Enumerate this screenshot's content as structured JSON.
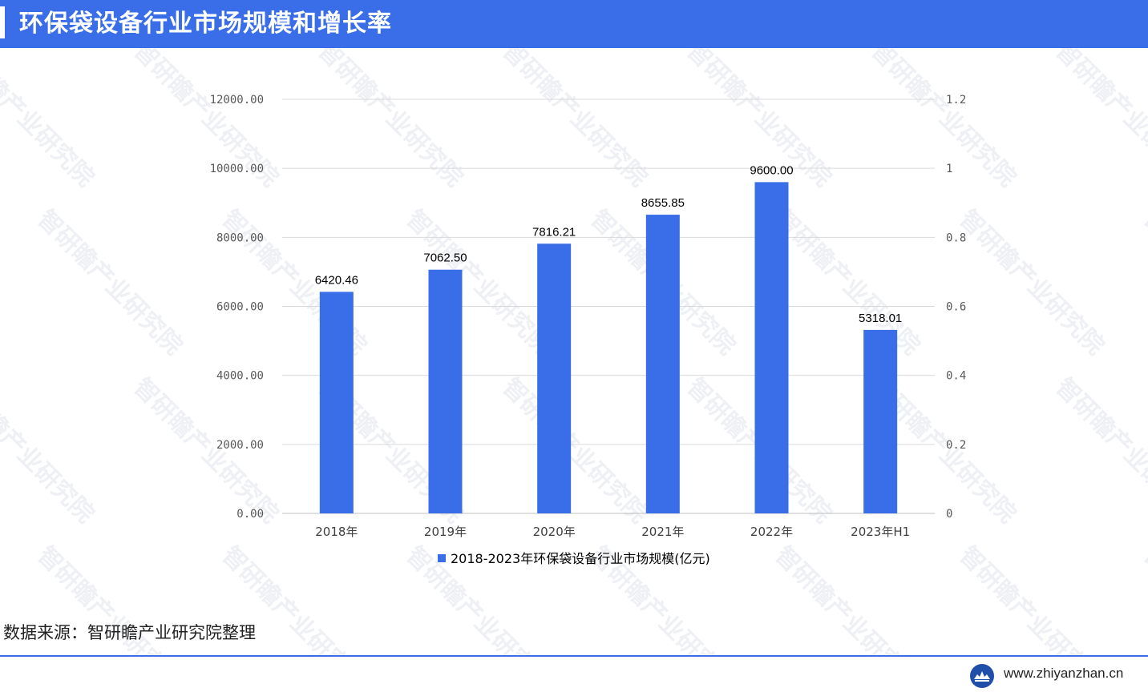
{
  "header": {
    "title": "环保袋设备行业市场规模和增长率"
  },
  "watermark": {
    "text": "智研瞻产业研究院"
  },
  "chart_data": {
    "type": "bar",
    "categories": [
      "2018年",
      "2019年",
      "2020年",
      "2021年",
      "2022年",
      "2023年H1"
    ],
    "series": [
      {
        "name": "2018-2023年环保袋设备行业市场规模(亿元)",
        "values": [
          6420.46,
          7062.5,
          7816.21,
          8655.85,
          9600.0,
          5318.01
        ]
      }
    ],
    "data_labels": [
      "6420.46",
      "7062.50",
      "7816.21",
      "8655.85",
      "9600.00",
      "5318.01"
    ],
    "ylim": [
      0,
      12000
    ],
    "y_ticks": [
      "0.00",
      "2000.00",
      "4000.00",
      "6000.00",
      "8000.00",
      "10000.00",
      "12000.00"
    ],
    "y2lim": [
      0,
      1.2
    ],
    "y2_ticks": [
      "0",
      "0.2",
      "0.4",
      "0.6",
      "0.8",
      "1",
      "1.2"
    ],
    "grid": true,
    "legend_position": "bottom",
    "bar_color": "#3a6ee8"
  },
  "source": {
    "text": "数据来源：智研瞻产业研究院整理"
  },
  "footer": {
    "url": "www.zhiyanzhan.cn"
  }
}
